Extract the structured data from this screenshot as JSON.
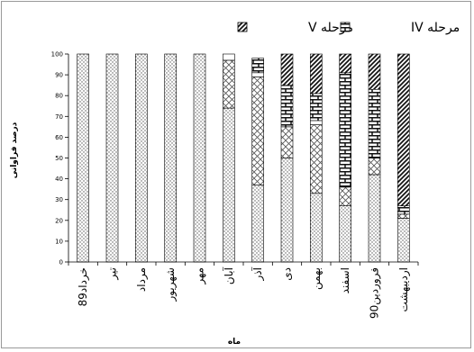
{
  "chart_data": {
    "type": "bar",
    "stacked": true,
    "title": "",
    "xlabel": "ماه",
    "ylabel": "درصد فراوانی",
    "ylim": [
      0,
      100
    ],
    "yticks": [
      0,
      10,
      20,
      30,
      40,
      50,
      60,
      70,
      80,
      90,
      100
    ],
    "grid": false,
    "legend_position": "top",
    "categories": [
      "خرداد89",
      "تیر",
      "مرداد",
      "شهریور",
      "مهر",
      "آبان",
      "آذر",
      "دی",
      "بهمن",
      "اسفند",
      "فروردین90",
      "اردیبهشت"
    ],
    "series": [
      {
        "name": "",
        "pattern": "dots",
        "values": [
          100,
          100,
          100,
          100,
          100,
          74,
          37,
          50,
          33,
          27,
          42,
          21
        ]
      },
      {
        "name": "",
        "pattern": "diagonal-cross",
        "values": [
          0,
          0,
          0,
          0,
          0,
          23,
          52,
          15,
          33,
          9,
          8,
          2
        ]
      },
      {
        "name": "",
        "pattern": "white",
        "values": [
          0,
          0,
          0,
          0,
          0,
          3,
          2,
          0,
          2,
          0,
          0,
          0
        ]
      },
      {
        "name": "مرحله IV",
        "pattern": "brick",
        "values": [
          0,
          0,
          0,
          0,
          0,
          0,
          7,
          20,
          13,
          55,
          33,
          4
        ]
      },
      {
        "name": "مرحله V",
        "pattern": "diagonal-dense",
        "values": [
          0,
          0,
          0,
          0,
          0,
          0,
          0,
          15,
          19,
          9,
          17,
          73
        ]
      }
    ],
    "legend": [
      {
        "label": "مرحله V",
        "pattern": "diagonal-dense"
      },
      {
        "label": "مرحله IV",
        "pattern": "brick"
      }
    ]
  }
}
